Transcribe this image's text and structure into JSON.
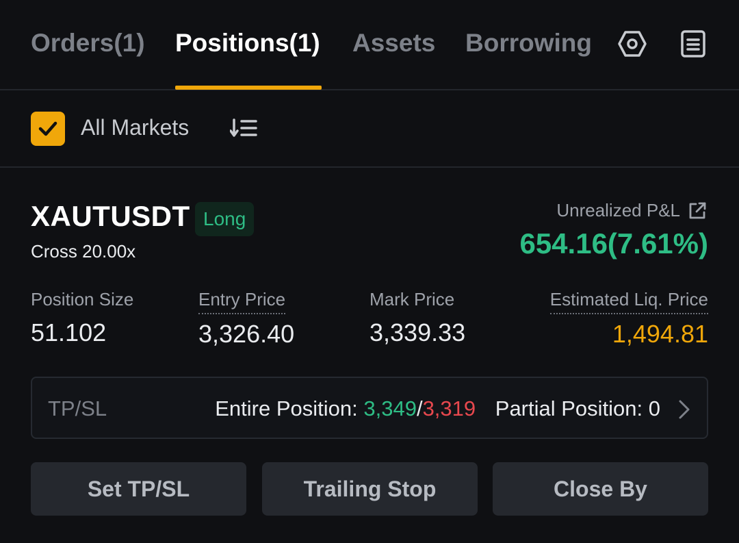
{
  "tabs": [
    {
      "label": "Orders(1)",
      "active": false
    },
    {
      "label": "Positions(1)",
      "active": true
    },
    {
      "label": "Assets",
      "active": false
    },
    {
      "label": "Borrowing",
      "active": false
    }
  ],
  "tab_icons": [
    "settings-hex-icon",
    "document-icon"
  ],
  "filter": {
    "checked": true,
    "label": "All Markets",
    "sort_icon": "sort-icon"
  },
  "position": {
    "symbol": "XAUTUSDT",
    "side": "Long",
    "margin_mode": "Cross 20.00x",
    "pnl_label": "Unrealized P&L",
    "pnl_value": "654.16(7.61%)",
    "stats": {
      "position_size": {
        "label": "Position Size",
        "value": "51.102"
      },
      "entry_price": {
        "label": "Entry Price",
        "value": "3,326.40"
      },
      "mark_price": {
        "label": "Mark Price",
        "value": "3,339.33"
      },
      "liq_price": {
        "label": "Estimated Liq. Price",
        "value": "1,494.81"
      }
    },
    "tpsl": {
      "title": "TP/SL",
      "entire_label": "Entire Position: ",
      "tp": "3,349",
      "separator": "/",
      "sl": "3,319",
      "partial_label": "Partial Position: 0"
    }
  },
  "buttons": {
    "set_tpsl": "Set TP/SL",
    "trailing_stop": "Trailing Stop",
    "close_by": "Close By"
  },
  "colors": {
    "accent": "#f0a70a",
    "positive": "#2ebd85",
    "negative": "#e8484e",
    "background": "#0f1013"
  }
}
